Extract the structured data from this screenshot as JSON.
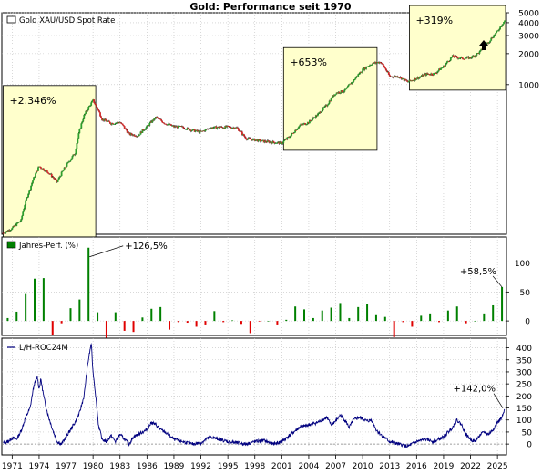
{
  "title": "Gold: Performance seit 1970",
  "colors": {
    "frame": "#000000",
    "grid": "#c0c0c0",
    "box_fill": "#ffffcc",
    "candle_up": "#2ca02c",
    "candle_down": "#d62728",
    "bar_pos": "#008000",
    "bar_neg": "#e00000",
    "roc_line": "#00007f",
    "zero_line": "#808080"
  },
  "icons": {
    "arrow": "up-arrow-icon"
  },
  "chart_data": [
    {
      "type": "line",
      "name": "price",
      "legend": "Gold XAU/USD Spot Rate",
      "legend_placement": "top-left",
      "scale": "log",
      "ylim": [
        35,
        5000
      ],
      "yticks": [
        1000,
        2000,
        3000,
        4000,
        5000
      ],
      "ytick_labels": [
        "1000",
        "2000",
        "3000",
        "4000",
        "5000"
      ],
      "grid": true,
      "x": [
        1970,
        1971,
        1972,
        1973,
        1974,
        1975,
        1976,
        1977,
        1978,
        1979,
        1980,
        1981,
        1982,
        1983,
        1984,
        1985,
        1986,
        1987,
        1988,
        1989,
        1990,
        1991,
        1992,
        1993,
        1994,
        1995,
        1996,
        1997,
        1998,
        1999,
        2000,
        2001,
        2002,
        2003,
        2004,
        2005,
        2006,
        2007,
        2008,
        2009,
        2010,
        2011,
        2012,
        2013,
        2014,
        2015,
        2016,
        2017,
        2018,
        2019,
        2020,
        2021,
        2022,
        2023,
        2024,
        2025,
        2025.8
      ],
      "y": [
        36,
        40,
        48,
        98,
        160,
        140,
        113,
        162,
        215,
        500,
        700,
        460,
        420,
        430,
        330,
        320,
        390,
        480,
        420,
        390,
        385,
        360,
        345,
        380,
        385,
        387,
        380,
        300,
        290,
        280,
        275,
        270,
        320,
        400,
        430,
        510,
        630,
        830,
        870,
        1100,
        1400,
        1600,
        1660,
        1200,
        1200,
        1060,
        1150,
        1260,
        1280,
        1500,
        1880,
        1800,
        1830,
        2060,
        2600,
        3300,
        4200
      ],
      "annotations": [
        {
          "label": "+2.346%",
          "x_from": 1970,
          "x_to": 1980.3
        },
        {
          "label": "+653%",
          "x_from": 2001.2,
          "x_to": 2011.6
        },
        {
          "label": "+319%",
          "x_from": 2015.2,
          "x_to": 2025.9
        }
      ]
    },
    {
      "type": "bar",
      "name": "annual",
      "legend": "Jahres-Perf. (%)",
      "legend_placement": "top-left",
      "ylim": [
        -25,
        145
      ],
      "yticks": [
        0,
        50,
        100
      ],
      "grid": true,
      "categories": [
        1970,
        1971,
        1972,
        1973,
        1974,
        1975,
        1976,
        1977,
        1978,
        1979,
        1980,
        1981,
        1982,
        1983,
        1984,
        1985,
        1986,
        1987,
        1988,
        1989,
        1990,
        1991,
        1992,
        1993,
        1994,
        1995,
        1996,
        1997,
        1998,
        1999,
        2000,
        2001,
        2002,
        2003,
        2004,
        2005,
        2006,
        2007,
        2008,
        2009,
        2010,
        2011,
        2012,
        2013,
        2014,
        2015,
        2016,
        2017,
        2018,
        2019,
        2020,
        2021,
        2022,
        2023,
        2024,
        2025
      ],
      "values": [
        5,
        16,
        48,
        73,
        74,
        -25,
        -4,
        22,
        37,
        126.5,
        15,
        -33,
        15,
        -17,
        -19,
        6,
        21,
        24,
        -15,
        -2,
        -3,
        -10,
        -6,
        17,
        -2,
        1,
        -5,
        -21,
        -1,
        0,
        -6,
        2,
        25,
        20,
        5,
        18,
        23,
        31,
        5,
        24,
        29,
        10,
        7,
        -28,
        -2,
        -10,
        9,
        13,
        -2,
        18,
        25,
        -4,
        0,
        13,
        27,
        58.5
      ],
      "callouts": [
        {
          "label": "+126,5%",
          "x": 1979
        },
        {
          "label": "+58,5%",
          "x": 2025
        }
      ]
    },
    {
      "type": "line",
      "name": "roc",
      "legend": "L/H-ROC24M",
      "legend_placement": "top-left",
      "ylim": [
        -45,
        440
      ],
      "yticks": [
        0,
        50,
        100,
        150,
        200,
        250,
        300,
        350,
        400
      ],
      "grid": true,
      "x": [
        1970,
        1970.5,
        1971,
        1971.5,
        1972,
        1972.5,
        1973,
        1973.4,
        1973.8,
        1974,
        1974.2,
        1974.5,
        1974.8,
        1975,
        1975.5,
        1976,
        1976.5,
        1977,
        1977.5,
        1978,
        1978.5,
        1979,
        1979.4,
        1979.8,
        1980,
        1980.3,
        1980.6,
        1981,
        1981.5,
        1982,
        1982.5,
        1983,
        1983.5,
        1984,
        1984.5,
        1985,
        1985.5,
        1986,
        1986.5,
        1987,
        1987.5,
        1988,
        1989,
        1990,
        1991,
        1992,
        1993,
        1994,
        1995,
        1996,
        1997,
        1998,
        1999,
        2000,
        2001,
        2002,
        2003,
        2004,
        2005,
        2006,
        2006.5,
        2007,
        2007.5,
        2008,
        2008.5,
        2009,
        2009.5,
        2010,
        2010.5,
        2011,
        2011.5,
        2012,
        2013,
        2014,
        2015,
        2016,
        2017,
        2018,
        2019,
        2020,
        2020.5,
        2021,
        2021.5,
        2022,
        2022.5,
        2023,
        2023.5,
        2024,
        2024.5,
        2025,
        2025.5,
        2025.8
      ],
      "y": [
        5,
        10,
        25,
        20,
        55,
        110,
        150,
        240,
        280,
        230,
        270,
        200,
        150,
        120,
        60,
        10,
        0,
        30,
        60,
        90,
        130,
        200,
        330,
        420,
        300,
        200,
        80,
        20,
        10,
        35,
        10,
        40,
        20,
        0,
        30,
        40,
        50,
        60,
        90,
        80,
        60,
        50,
        20,
        10,
        0,
        5,
        30,
        20,
        10,
        5,
        0,
        10,
        15,
        0,
        10,
        40,
        70,
        80,
        90,
        110,
        80,
        95,
        120,
        100,
        70,
        100,
        110,
        105,
        95,
        100,
        60,
        40,
        10,
        0,
        -10,
        10,
        20,
        10,
        30,
        70,
        100,
        80,
        40,
        20,
        10,
        35,
        50,
        40,
        60,
        90,
        110,
        142
      ],
      "callouts": [
        {
          "label": "+142,0%",
          "x": 2025.8
        }
      ]
    }
  ],
  "x_axis": {
    "tick_labels": [
      "1971",
      "1974",
      "1977",
      "1980",
      "1983",
      "1986",
      "1989",
      "1992",
      "1995",
      "1998",
      "2001",
      "2004",
      "2007",
      "2010",
      "2013",
      "2016",
      "2019",
      "2022",
      "2025"
    ],
    "tick_values": [
      1971,
      1974,
      1977,
      1980,
      1983,
      1986,
      1989,
      1992,
      1995,
      1998,
      2001,
      2004,
      2007,
      2010,
      2013,
      2016,
      2019,
      2022,
      2025
    ]
  }
}
